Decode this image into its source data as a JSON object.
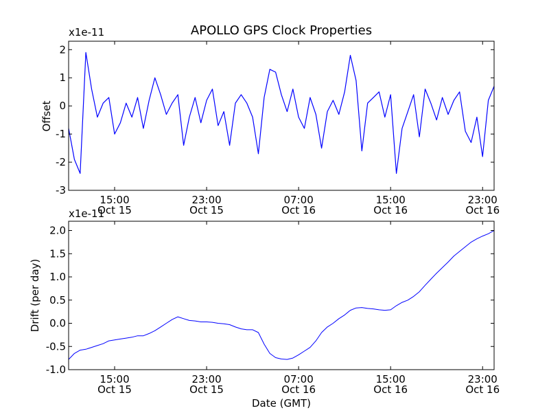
{
  "chart_data": [
    {
      "type": "line",
      "title": "APOLLO GPS Clock Properties",
      "ylabel": "Offset",
      "xlabel": "",
      "y_multiplier": "x1e-11",
      "xlim": [
        "Oct 15 11:00",
        "Oct 17 00:00"
      ],
      "ylim": [
        -3,
        2.3
      ],
      "yticks": [
        -3,
        -2,
        -1,
        0,
        1,
        2
      ],
      "ytick_labels": [
        "-3",
        "-2",
        "-1",
        "0",
        "1",
        "2"
      ],
      "xticks": [
        {
          "time": "15:00",
          "date": "Oct 15"
        },
        {
          "time": "23:00",
          "date": "Oct 15"
        },
        {
          "time": "07:00",
          "date": "Oct 16"
        },
        {
          "time": "15:00",
          "date": "Oct 16"
        },
        {
          "time": "23:00",
          "date": "Oct 16"
        }
      ],
      "color": "#0000ff",
      "grid": false,
      "series": [
        {
          "x": [
            "Oct 15 11:00",
            "Oct 15 11:30",
            "Oct 15 12:00",
            "Oct 15 12:30",
            "Oct 15 13:00",
            "Oct 15 13:30",
            "Oct 15 14:00",
            "Oct 15 14:30",
            "Oct 15 15:00",
            "Oct 15 15:30",
            "Oct 15 16:00",
            "Oct 15 16:30",
            "Oct 15 17:00",
            "Oct 15 17:30",
            "Oct 15 18:00",
            "Oct 15 18:30",
            "Oct 15 19:00",
            "Oct 15 19:30",
            "Oct 15 20:00",
            "Oct 15 20:30",
            "Oct 15 21:00",
            "Oct 15 21:30",
            "Oct 15 22:00",
            "Oct 15 22:30",
            "Oct 15 23:00",
            "Oct 15 23:30",
            "Oct 16 00:00",
            "Oct 16 00:30",
            "Oct 16 01:00",
            "Oct 16 01:30",
            "Oct 16 02:00",
            "Oct 16 02:30",
            "Oct 16 03:00",
            "Oct 16 03:30",
            "Oct 16 04:00",
            "Oct 16 04:30",
            "Oct 16 05:00",
            "Oct 16 05:30",
            "Oct 16 06:00",
            "Oct 16 06:30",
            "Oct 16 07:00",
            "Oct 16 07:30",
            "Oct 16 08:00",
            "Oct 16 08:30",
            "Oct 16 09:00",
            "Oct 16 09:30",
            "Oct 16 10:00",
            "Oct 16 10:30",
            "Oct 16 11:00",
            "Oct 16 11:30",
            "Oct 16 12:00",
            "Oct 16 12:30",
            "Oct 16 13:00",
            "Oct 16 13:30",
            "Oct 16 14:00",
            "Oct 16 14:30",
            "Oct 16 15:00",
            "Oct 16 15:30",
            "Oct 16 16:00",
            "Oct 16 16:30",
            "Oct 16 17:00",
            "Oct 16 17:30",
            "Oct 16 18:00",
            "Oct 16 18:30",
            "Oct 16 19:00",
            "Oct 16 19:30",
            "Oct 16 20:00",
            "Oct 16 20:30",
            "Oct 16 21:00",
            "Oct 16 21:30",
            "Oct 16 22:00",
            "Oct 16 22:30",
            "Oct 16 23:00",
            "Oct 16 23:30",
            "Oct 17 00:00"
          ],
          "y": [
            -0.8,
            -1.9,
            -2.4,
            1.9,
            0.6,
            -0.4,
            0.1,
            0.3,
            -1.0,
            -0.6,
            0.1,
            -0.4,
            0.3,
            -0.8,
            0.2,
            1.0,
            0.4,
            -0.3,
            0.1,
            0.4,
            -1.4,
            -0.4,
            0.3,
            -0.6,
            0.2,
            0.6,
            -0.7,
            -0.2,
            -1.4,
            0.1,
            0.4,
            0.1,
            -0.4,
            -1.7,
            0.3,
            1.3,
            1.2,
            0.4,
            -0.2,
            0.6,
            -0.4,
            -0.8,
            0.3,
            -0.3,
            -1.5,
            -0.2,
            0.2,
            -0.3,
            0.5,
            1.8,
            0.9,
            -1.6,
            0.1,
            0.3,
            0.5,
            -0.4,
            0.4,
            -2.4,
            -0.8,
            -0.2,
            0.4,
            -1.1,
            0.6,
            0.1,
            -0.5,
            0.3,
            -0.3,
            0.2,
            0.5,
            -0.9,
            -1.3,
            -0.4,
            -1.8,
            0.2,
            0.7
          ]
        }
      ]
    },
    {
      "type": "line",
      "title": "",
      "ylabel": "Drift (per day)",
      "xlabel": "Date (GMT)",
      "y_multiplier": "x1e-11",
      "xlim": [
        "Oct 15 11:00",
        "Oct 17 00:00"
      ],
      "ylim": [
        -1.0,
        2.2
      ],
      "yticks": [
        -1.0,
        -0.5,
        0.0,
        0.5,
        1.0,
        1.5,
        2.0
      ],
      "ytick_labels": [
        "-1.0",
        "-0.5",
        "0.0",
        "0.5",
        "1.0",
        "1.5",
        "2.0"
      ],
      "xticks": [
        {
          "time": "15:00",
          "date": "Oct 15"
        },
        {
          "time": "23:00",
          "date": "Oct 15"
        },
        {
          "time": "07:00",
          "date": "Oct 16"
        },
        {
          "time": "15:00",
          "date": "Oct 16"
        },
        {
          "time": "23:00",
          "date": "Oct 16"
        }
      ],
      "color": "#0000ff",
      "grid": false,
      "series": [
        {
          "x": [
            "Oct 15 11:00",
            "Oct 15 11:30",
            "Oct 15 12:00",
            "Oct 15 12:30",
            "Oct 15 13:00",
            "Oct 15 13:30",
            "Oct 15 14:00",
            "Oct 15 14:30",
            "Oct 15 15:00",
            "Oct 15 15:30",
            "Oct 15 16:00",
            "Oct 15 16:30",
            "Oct 15 17:00",
            "Oct 15 17:30",
            "Oct 15 18:00",
            "Oct 15 18:30",
            "Oct 15 19:00",
            "Oct 15 19:30",
            "Oct 15 20:00",
            "Oct 15 20:30",
            "Oct 15 21:00",
            "Oct 15 21:30",
            "Oct 15 22:00",
            "Oct 15 22:30",
            "Oct 15 23:00",
            "Oct 15 23:30",
            "Oct 16 00:00",
            "Oct 16 00:30",
            "Oct 16 01:00",
            "Oct 16 01:30",
            "Oct 16 02:00",
            "Oct 16 02:30",
            "Oct 16 03:00",
            "Oct 16 03:30",
            "Oct 16 04:00",
            "Oct 16 04:30",
            "Oct 16 05:00",
            "Oct 16 05:30",
            "Oct 16 06:00",
            "Oct 16 06:30",
            "Oct 16 07:00",
            "Oct 16 07:30",
            "Oct 16 08:00",
            "Oct 16 08:30",
            "Oct 16 09:00",
            "Oct 16 09:30",
            "Oct 16 10:00",
            "Oct 16 10:30",
            "Oct 16 11:00",
            "Oct 16 11:30",
            "Oct 16 12:00",
            "Oct 16 12:30",
            "Oct 16 13:00",
            "Oct 16 13:30",
            "Oct 16 14:00",
            "Oct 16 14:30",
            "Oct 16 15:00",
            "Oct 16 15:30",
            "Oct 16 16:00",
            "Oct 16 16:30",
            "Oct 16 17:00",
            "Oct 16 17:30",
            "Oct 16 18:00",
            "Oct 16 18:30",
            "Oct 16 19:00",
            "Oct 16 19:30",
            "Oct 16 20:00",
            "Oct 16 20:30",
            "Oct 16 21:00",
            "Oct 16 21:30",
            "Oct 16 22:00",
            "Oct 16 22:30",
            "Oct 16 23:00",
            "Oct 16 23:30",
            "Oct 17 00:00"
          ],
          "y": [
            -0.78,
            -0.65,
            -0.58,
            -0.56,
            -0.52,
            -0.48,
            -0.44,
            -0.38,
            -0.36,
            -0.34,
            -0.32,
            -0.3,
            -0.27,
            -0.27,
            -0.22,
            -0.16,
            -0.08,
            0.0,
            0.08,
            0.14,
            0.1,
            0.06,
            0.05,
            0.03,
            0.03,
            0.02,
            0.0,
            -0.01,
            -0.03,
            -0.08,
            -0.12,
            -0.14,
            -0.14,
            -0.2,
            -0.45,
            -0.65,
            -0.74,
            -0.77,
            -0.78,
            -0.75,
            -0.68,
            -0.6,
            -0.52,
            -0.38,
            -0.2,
            -0.08,
            0.0,
            0.1,
            0.18,
            0.28,
            0.33,
            0.34,
            0.32,
            0.31,
            0.29,
            0.28,
            0.29,
            0.38,
            0.45,
            0.5,
            0.58,
            0.68,
            0.82,
            0.95,
            1.08,
            1.2,
            1.32,
            1.45,
            1.55,
            1.65,
            1.75,
            1.82,
            1.88,
            1.93,
            2.0
          ]
        }
      ]
    }
  ]
}
